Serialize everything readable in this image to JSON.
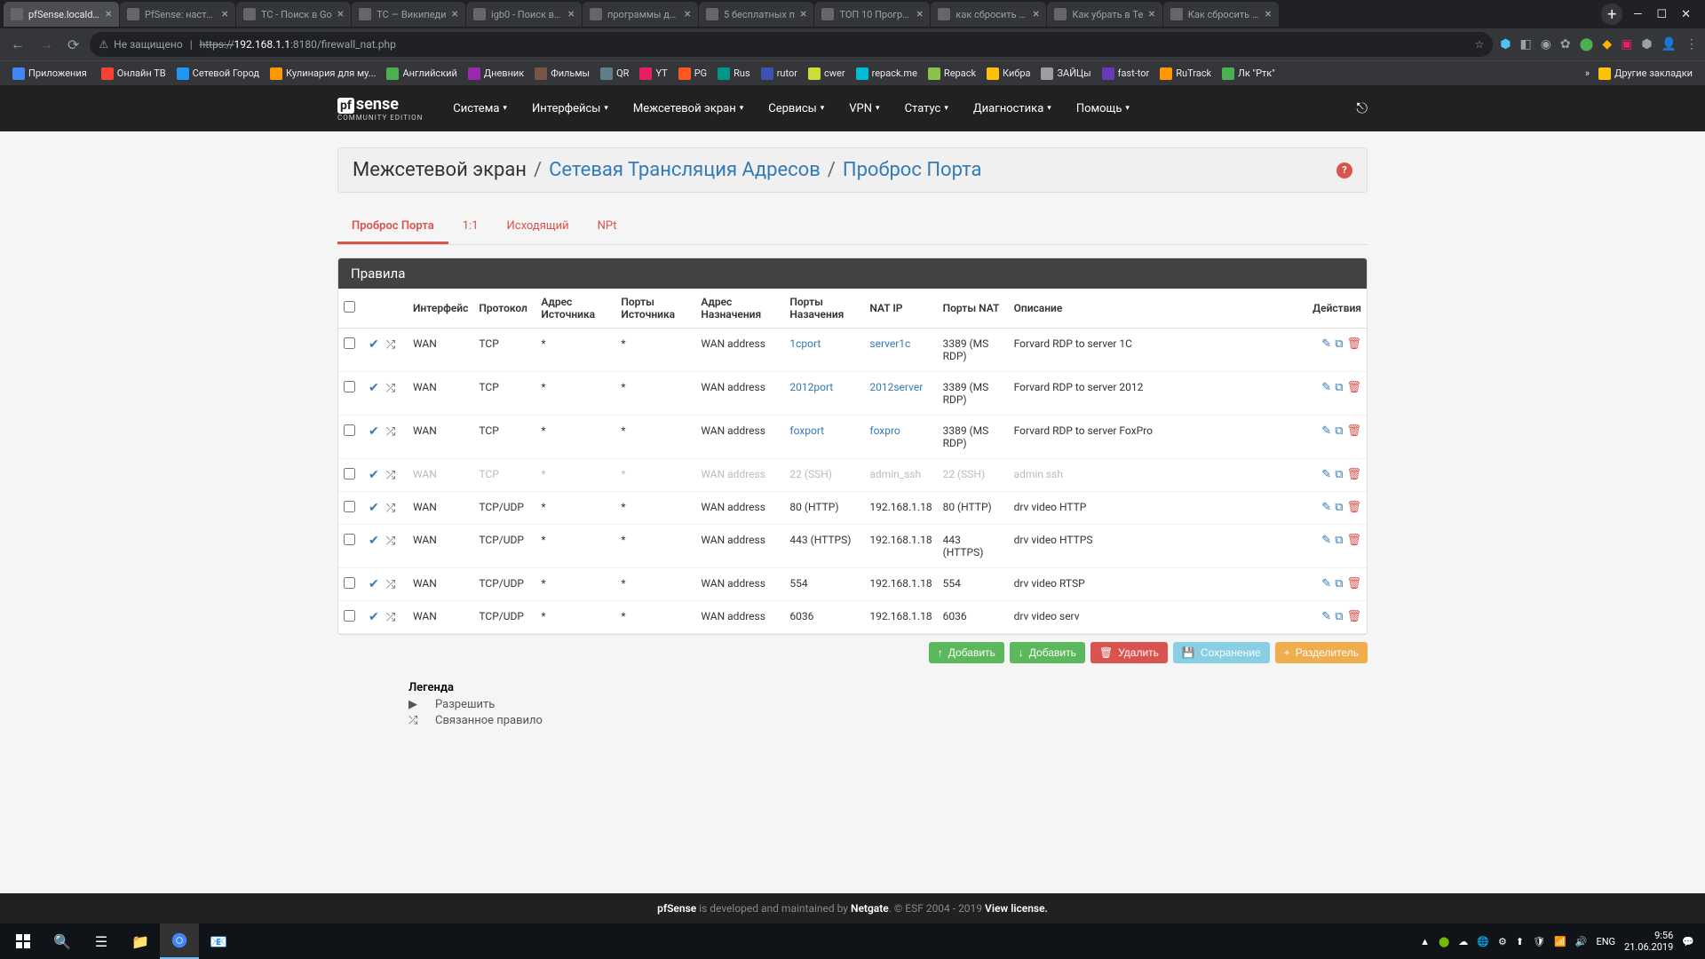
{
  "browser": {
    "tabs": [
      {
        "title": "pfSense.localdom",
        "active": true
      },
      {
        "title": "PfSense: настро"
      },
      {
        "title": "ТС - Поиск в Go"
      },
      {
        "title": "ТС — Википеди"
      },
      {
        "title": "igb0 - Поиск в G"
      },
      {
        "title": "программы для"
      },
      {
        "title": "5 бесплатных п"
      },
      {
        "title": "ТОП 10 Програм"
      },
      {
        "title": "как сбросить те"
      },
      {
        "title": "Как убрать в Te"
      },
      {
        "title": "Как сбросить Te"
      }
    ],
    "not_secure_label": "Не защищено",
    "url_scheme": "https://",
    "url_host": "192.168.1.1",
    "url_port_path": ":8180/firewall_nat.php",
    "bookmarks": [
      "Приложения",
      "Онлайн ТВ",
      "Сетевой Город",
      "Кулинария для му...",
      "Английский",
      "Дневник",
      "Фильмы",
      "QR",
      "YT",
      "PG",
      "Rus",
      "rutor",
      "cwer",
      "repack.me",
      "Repack",
      "Кибра",
      "ЗАЙЦы",
      "fast-tor",
      "RuTrack",
      "Лк \"Ртк\""
    ],
    "other_bookmarks": "Другие закладки"
  },
  "nav": {
    "items": [
      "Система",
      "Интерфейсы",
      "Межсетевой экран",
      "Сервисы",
      "VPN",
      "Статус",
      "Диагностика",
      "Помощь"
    ],
    "logo_text": "sense",
    "logo_prefix": "pf",
    "logo_sub": "COMMUNITY EDITION"
  },
  "breadcrumb": {
    "p1": "Межсетевой экран",
    "p2": "Сетевая Трансляция Адресов",
    "p3": "Проброс Порта"
  },
  "tabs": [
    "Проброс Порта",
    "1:1",
    "Исходящий",
    "NPt"
  ],
  "panel_title": "Правила",
  "columns": [
    "",
    "",
    "Интерфейс",
    "Протокол",
    "Адрес Источника",
    "Порты Источника",
    "Адрес Назначения",
    "Порты Назачения",
    "NAT IP",
    "Порты NAT",
    "Описание",
    "Действия"
  ],
  "rows": [
    {
      "iface": "WAN",
      "proto": "TCP",
      "src": "*",
      "sport": "*",
      "dst": "WAN address",
      "dport": "1cport",
      "dport_link": true,
      "natip": "server1c",
      "natip_link": true,
      "natport": "3389 (MS RDP)",
      "desc": "Forvard RDP to server 1C",
      "disabled": false
    },
    {
      "iface": "WAN",
      "proto": "TCP",
      "src": "*",
      "sport": "*",
      "dst": "WAN address",
      "dport": "2012port",
      "dport_link": true,
      "natip": "2012server",
      "natip_link": true,
      "natport": "3389 (MS RDP)",
      "desc": "Forvard RDP to server 2012",
      "disabled": false
    },
    {
      "iface": "WAN",
      "proto": "TCP",
      "src": "*",
      "sport": "*",
      "dst": "WAN address",
      "dport": "foxport",
      "dport_link": true,
      "natip": "foxpro",
      "natip_link": true,
      "natport": "3389 (MS RDP)",
      "desc": "Forvard RDP to server FoxPro",
      "disabled": false
    },
    {
      "iface": "WAN",
      "proto": "TCP",
      "src": "*",
      "sport": "*",
      "dst": "WAN address",
      "dport": "22 (SSH)",
      "dport_link": false,
      "natip": "admin_ssh",
      "natip_link": true,
      "natport": "22 (SSH)",
      "desc": "admin ssh",
      "disabled": true
    },
    {
      "iface": "WAN",
      "proto": "TCP/UDP",
      "src": "*",
      "sport": "*",
      "dst": "WAN address",
      "dport": "80 (HTTP)",
      "dport_link": false,
      "natip": "192.168.1.18",
      "natip_link": false,
      "natport": "80 (HTTP)",
      "desc": "drv video HTTP",
      "disabled": false
    },
    {
      "iface": "WAN",
      "proto": "TCP/UDP",
      "src": "*",
      "sport": "*",
      "dst": "WAN address",
      "dport": "443 (HTTPS)",
      "dport_link": false,
      "natip": "192.168.1.18",
      "natip_link": false,
      "natport": "443 (HTTPS)",
      "desc": "drv video HTTPS",
      "disabled": false
    },
    {
      "iface": "WAN",
      "proto": "TCP/UDP",
      "src": "*",
      "sport": "*",
      "dst": "WAN address",
      "dport": "554",
      "dport_link": false,
      "natip": "192.168.1.18",
      "natip_link": false,
      "natport": "554",
      "desc": "drv video RTSP",
      "disabled": false
    },
    {
      "iface": "WAN",
      "proto": "TCP/UDP",
      "src": "*",
      "sport": "*",
      "dst": "WAN address",
      "dport": "6036",
      "dport_link": false,
      "natip": "192.168.1.18",
      "natip_link": false,
      "natport": "6036",
      "desc": "drv video serv",
      "disabled": false
    }
  ],
  "buttons": {
    "add1": "Добавить",
    "add2": "Добавить",
    "delete": "Удалить",
    "save": "Сохранение",
    "separator": "Разделитель"
  },
  "legend": {
    "title": "Легенда",
    "allow": "Разрешить",
    "linked": "Связанное правило"
  },
  "footer": {
    "pfsense": "pfSense",
    "text1": " is developed and maintained by ",
    "netgate": "Netgate",
    "text2": ". © ESF 2004 - 2019 ",
    "view": "View license."
  },
  "taskbar": {
    "time": "9:56",
    "date": "21.06.2019",
    "lang": "ENG"
  }
}
